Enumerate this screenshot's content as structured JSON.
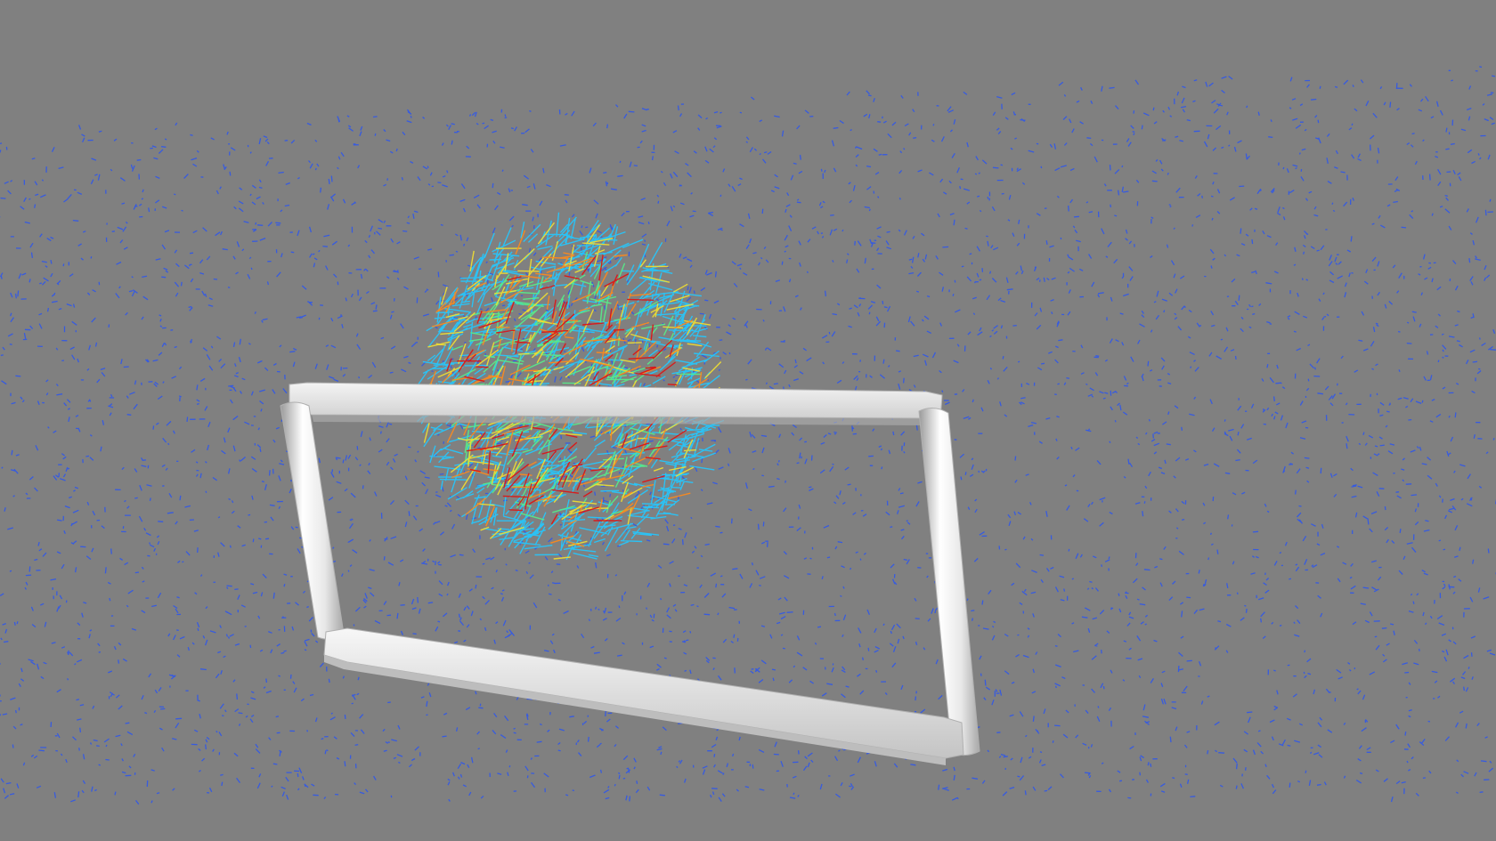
{
  "viewport": {
    "background": "#808080",
    "frame_color": "#e6e6e6",
    "field_colors": {
      "low": "#1f4fff",
      "mid_low": "#22c8ff",
      "mid": "#55ee88",
      "mid_high": "#f2e030",
      "high": "#ff8a1a",
      "max": "#e01010"
    }
  }
}
